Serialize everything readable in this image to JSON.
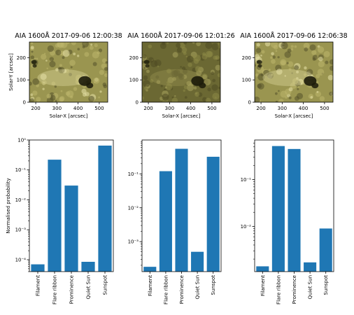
{
  "colors": {
    "bar": "#1f77b4",
    "axis": "#000000",
    "solar_light": "#bdb76b",
    "solar_mid": "#9a9550",
    "solar_dark": "#55522a",
    "solar_spot": "#1c1b0a",
    "solar_bright": "#e8e2a8"
  },
  "images": [
    {
      "title": "AIA 1600Å 2017-09-06 12:00:38",
      "brightness": "normal"
    },
    {
      "title": "AIA 1600Å 2017-09-06 12:01:26",
      "brightness": "dark"
    },
    {
      "title": "AIA 1600Å 2017-09-06 12:06:38",
      "brightness": "normal"
    }
  ],
  "image_axes": {
    "xlabel": "Solar-X [arcsec]",
    "ylabel": "Solar-Y [arcsec]",
    "xticks": [
      "200",
      "300",
      "400",
      "500"
    ],
    "yticks": [
      "0",
      "100",
      "200"
    ]
  },
  "chart_data": [
    {
      "type": "bar",
      "yscale": "log",
      "ylabel": "Normalised probability",
      "categories": [
        "Filament",
        "Flare ribbon",
        "Prominence",
        "Quiet Sun",
        "Sunspot"
      ],
      "values": [
        7e-05,
        0.22,
        0.03,
        8.5e-05,
        0.65
      ],
      "ylim": [
        4e-05,
        1.0
      ],
      "yticks": [
        {
          "v": 1,
          "t": "10⁰"
        },
        {
          "v": 0.1,
          "t": "10⁻¹"
        },
        {
          "v": 0.01,
          "t": "10⁻²"
        },
        {
          "v": 0.001,
          "t": "10⁻³"
        },
        {
          "v": 0.0001,
          "t": "10⁻⁴"
        }
      ]
    },
    {
      "type": "bar",
      "yscale": "log",
      "ylabel": "",
      "categories": [
        "Filament",
        "Flare ribbon",
        "Prominence",
        "Quiet Sun",
        "Sunspot"
      ],
      "values": [
        0.00018,
        0.12,
        0.55,
        0.0005,
        0.32
      ],
      "ylim": [
        0.00013,
        1.0
      ],
      "yticks": [
        {
          "v": 0.1,
          "t": "10⁻¹"
        },
        {
          "v": 0.01,
          "t": "10⁻²"
        },
        {
          "v": 0.001,
          "t": "10⁻³"
        }
      ]
    },
    {
      "type": "bar",
      "yscale": "log",
      "ylabel": "",
      "categories": [
        "Filament",
        "Flare ribbon",
        "Prominence",
        "Quiet Sun",
        "Sunspot"
      ],
      "values": [
        0.0014,
        0.52,
        0.45,
        0.0017,
        0.009
      ],
      "ylim": [
        0.00108,
        0.7
      ],
      "yticks": [
        {
          "v": 0.1,
          "t": "10⁻¹"
        },
        {
          "v": 0.01,
          "t": "10⁻²"
        }
      ]
    }
  ]
}
